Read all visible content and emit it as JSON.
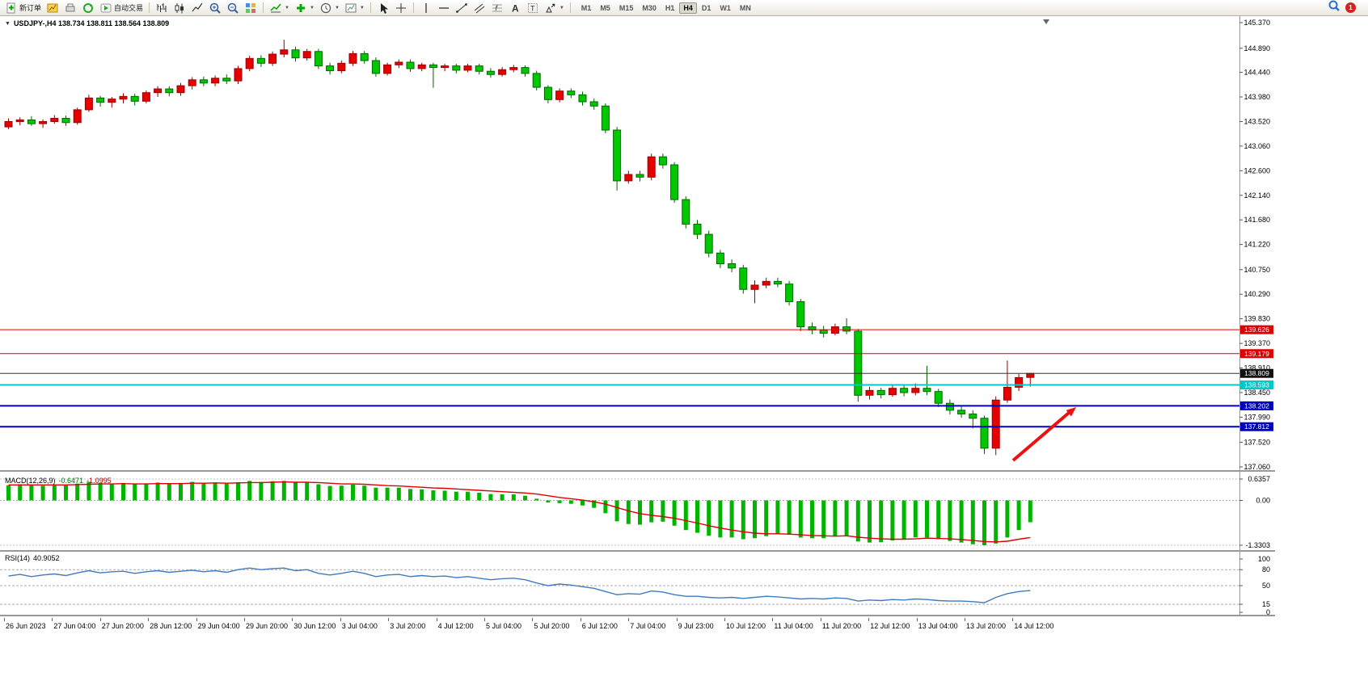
{
  "toolbar": {
    "items": [
      {
        "name": "new-order-button",
        "icon": "doc-plus",
        "label": "新订单"
      },
      {
        "name": "charts-window-button",
        "icon": "chart-yellow"
      },
      {
        "name": "print-button",
        "icon": "print"
      },
      {
        "name": "refresh-button",
        "icon": "refresh"
      },
      {
        "name": "autotrade-button",
        "icon": "autotrade-play",
        "label": "自动交易"
      },
      {
        "sep": true
      },
      {
        "name": "bar-chart-button",
        "icon": "bars"
      },
      {
        "name": "candlestick-chart-button",
        "icon": "candle"
      },
      {
        "name": "line-chart-button",
        "icon": "linechart"
      },
      {
        "name": "zoom-in-button",
        "icon": "zoom-in"
      },
      {
        "name": "zoom-out-button",
        "icon": "zoom-out"
      },
      {
        "name": "tile-windows-button",
        "icon": "tile"
      },
      {
        "sep": true
      },
      {
        "name": "indicators-button",
        "icon": "indicator",
        "caret": true
      },
      {
        "name": "add-indicator-button",
        "icon": "plus-green",
        "caret": true
      },
      {
        "name": "periods-button",
        "icon": "clock",
        "caret": true
      },
      {
        "name": "templates-button",
        "icon": "settings-chart",
        "caret": true
      },
      {
        "sep": true
      },
      {
        "name": "cursor-button",
        "icon": "cursor"
      },
      {
        "name": "crosshair-button",
        "icon": "crosshair"
      },
      {
        "sep": true
      },
      {
        "name": "vertical-line-button",
        "icon": "vline"
      },
      {
        "name": "horizontal-line-button",
        "icon": "hline"
      },
      {
        "name": "trendline-button",
        "icon": "trendline"
      },
      {
        "name": "channel-button",
        "icon": "channel"
      },
      {
        "name": "fibonacci-button",
        "icon": "fibo"
      },
      {
        "name": "text-button",
        "icon": "textA"
      },
      {
        "name": "label-button",
        "icon": "textT"
      },
      {
        "name": "arrows-button",
        "icon": "shapes",
        "caret": true
      },
      {
        "sep": true
      }
    ],
    "timeframes": [
      "M1",
      "M5",
      "M15",
      "M30",
      "H1",
      "H4",
      "D1",
      "W1",
      "MN"
    ],
    "active_timeframe": "H4",
    "notification_count": "1"
  },
  "chart": {
    "title": "USDJPY-,H4 138.734 138.811 138.564 138.809",
    "symbol": "USDJPY-",
    "period": "H4",
    "ohlc": {
      "open": "138.734",
      "high": "138.811",
      "low": "138.564",
      "close": "138.809"
    },
    "axis_max": 145.37,
    "axis_min": 137.06,
    "price_axis": [
      "145.370",
      "144.890",
      "144.440",
      "143.980",
      "143.520",
      "143.060",
      "142.600",
      "142.140",
      "141.680",
      "141.220",
      "140.750",
      "140.290",
      "139.830",
      "139.370",
      "138.910",
      "138.450",
      "137.990",
      "137.520",
      "137.060"
    ],
    "hlines": [
      {
        "price": 139.626,
        "label": "139.626",
        "color": "#dd0000",
        "badge": "#dd0000",
        "width": 1
      },
      {
        "price": 139.179,
        "label": "139.179",
        "color": "#dd0000",
        "badge": "#dd0000",
        "width": 1
      },
      {
        "price": 138.809,
        "label": "138.809",
        "color": "#333333",
        "badge": "#111111",
        "width": 1
      },
      {
        "price": 138.593,
        "label": "138.593",
        "color": "#00c8c8",
        "badge": "#00c8c8",
        "width": 2
      },
      {
        "price": 138.202,
        "label": "138.202",
        "color": "#0000c0",
        "badge": "#0000c0",
        "width": 2
      },
      {
        "price": 137.812,
        "label": "137.812",
        "color": "#0000c0",
        "badge": "#0000c0",
        "width": 2
      }
    ],
    "time_axis": [
      "26 Jun 2023",
      "27 Jun 04:00",
      "27 Jun 20:00",
      "28 Jun 12:00",
      "29 Jun 04:00",
      "29 Jun 20:00",
      "30 Jun 12:00",
      "3 Jul 04:00",
      "3 Jul 20:00",
      "4 Jul 12:00",
      "5 Jul 04:00",
      "5 Jul 20:00",
      "6 Jul 12:00",
      "7 Jul 04:00",
      "9 Jul 23:00",
      "10 Jul 12:00",
      "11 Jul 04:00",
      "11 Jul 20:00",
      "12 Jul 12:00",
      "13 Jul 04:00",
      "13 Jul 20:00",
      "14 Jul 12:00"
    ],
    "arrow": {
      "color": "#ee1111"
    }
  },
  "chart_data": {
    "type": "candlestick",
    "title": "USDJPY- H4",
    "ylim": [
      137.06,
      145.37
    ],
    "x_labels": [
      "26 Jun 2023",
      "27 Jun 04:00",
      "27 Jun 20:00",
      "28 Jun 12:00",
      "29 Jun 04:00",
      "29 Jun 20:00",
      "30 Jun 12:00",
      "3 Jul 04:00",
      "3 Jul 20:00",
      "4 Jul 12:00",
      "5 Jul 04:00",
      "5 Jul 20:00",
      "6 Jul 12:00",
      "7 Jul 04:00",
      "9 Jul 23:00",
      "10 Jul 12:00",
      "11 Jul 04:00",
      "11 Jul 20:00",
      "12 Jul 12:00",
      "13 Jul 04:00",
      "13 Jul 20:00",
      "14 Jul 12:00"
    ],
    "up_color": "#e60000",
    "down_color": "#00c800",
    "up_border": "#990000",
    "down_border": "#006600",
    "candles": [
      [
        143.42,
        143.58,
        143.38,
        143.52
      ],
      [
        143.52,
        143.6,
        143.45,
        143.55
      ],
      [
        143.55,
        143.62,
        143.44,
        143.48
      ],
      [
        143.48,
        143.56,
        143.4,
        143.52
      ],
      [
        143.52,
        143.64,
        143.48,
        143.58
      ],
      [
        143.58,
        143.63,
        143.44,
        143.5
      ],
      [
        143.5,
        143.78,
        143.46,
        143.74
      ],
      [
        143.74,
        144.02,
        143.7,
        143.96
      ],
      [
        143.96,
        144.0,
        143.8,
        143.88
      ],
      [
        143.88,
        143.98,
        143.78,
        143.94
      ],
      [
        143.94,
        144.05,
        143.86,
        143.99
      ],
      [
        143.99,
        144.04,
        143.82,
        143.9
      ],
      [
        143.9,
        144.1,
        143.86,
        144.06
      ],
      [
        144.06,
        144.18,
        143.98,
        144.13
      ],
      [
        144.13,
        144.18,
        143.99,
        144.06
      ],
      [
        144.06,
        144.24,
        144.0,
        144.19
      ],
      [
        144.19,
        144.35,
        144.12,
        144.3
      ],
      [
        144.3,
        144.36,
        144.18,
        144.24
      ],
      [
        144.24,
        144.38,
        144.18,
        144.33
      ],
      [
        144.33,
        144.4,
        144.22,
        144.28
      ],
      [
        144.28,
        144.56,
        144.22,
        144.51
      ],
      [
        144.51,
        144.75,
        144.46,
        144.7
      ],
      [
        144.7,
        144.76,
        144.54,
        144.61
      ],
      [
        144.61,
        144.83,
        144.56,
        144.78
      ],
      [
        144.78,
        145.05,
        144.72,
        144.86
      ],
      [
        144.86,
        144.92,
        144.64,
        144.71
      ],
      [
        144.71,
        144.88,
        144.66,
        144.83
      ],
      [
        144.83,
        144.88,
        144.5,
        144.56
      ],
      [
        144.56,
        144.62,
        144.4,
        144.47
      ],
      [
        144.47,
        144.66,
        144.42,
        144.61
      ],
      [
        144.61,
        144.84,
        144.56,
        144.79
      ],
      [
        144.79,
        144.84,
        144.6,
        144.66
      ],
      [
        144.66,
        144.72,
        144.36,
        144.42
      ],
      [
        144.42,
        144.62,
        144.38,
        144.58
      ],
      [
        144.58,
        144.68,
        144.52,
        144.63
      ],
      [
        144.63,
        144.68,
        144.45,
        144.51
      ],
      [
        144.51,
        144.62,
        144.46,
        144.58
      ],
      [
        144.58,
        144.62,
        144.15,
        144.53
      ],
      [
        144.53,
        144.6,
        144.46,
        144.56
      ],
      [
        144.56,
        144.6,
        144.42,
        144.48
      ],
      [
        144.48,
        144.6,
        144.44,
        144.56
      ],
      [
        144.56,
        144.6,
        144.4,
        144.46
      ],
      [
        144.46,
        144.52,
        144.34,
        144.4
      ],
      [
        144.4,
        144.54,
        144.36,
        144.49
      ],
      [
        144.49,
        144.58,
        144.44,
        144.53
      ],
      [
        144.53,
        144.57,
        144.36,
        144.42
      ],
      [
        144.42,
        144.47,
        144.1,
        144.16
      ],
      [
        144.16,
        144.2,
        143.86,
        143.93
      ],
      [
        143.93,
        144.14,
        143.88,
        144.09
      ],
      [
        144.09,
        144.14,
        143.96,
        144.02
      ],
      [
        144.02,
        144.08,
        143.82,
        143.89
      ],
      [
        143.89,
        143.95,
        143.74,
        143.81
      ],
      [
        143.81,
        143.86,
        143.3,
        143.36
      ],
      [
        143.36,
        143.42,
        142.23,
        142.41
      ],
      [
        142.41,
        142.6,
        142.36,
        142.53
      ],
      [
        142.53,
        142.6,
        142.4,
        142.48
      ],
      [
        142.48,
        142.92,
        142.42,
        142.86
      ],
      [
        142.86,
        142.92,
        142.64,
        142.71
      ],
      [
        142.71,
        142.76,
        142.0,
        142.06
      ],
      [
        142.06,
        142.12,
        141.52,
        141.6
      ],
      [
        141.6,
        141.68,
        141.32,
        141.41
      ],
      [
        141.41,
        141.48,
        140.98,
        141.06
      ],
      [
        141.06,
        141.12,
        140.78,
        140.86
      ],
      [
        140.86,
        140.94,
        140.7,
        140.78
      ],
      [
        140.78,
        140.84,
        140.3,
        140.38
      ],
      [
        140.38,
        140.55,
        140.12,
        140.46
      ],
      [
        140.46,
        140.6,
        140.4,
        140.53
      ],
      [
        140.53,
        140.6,
        140.42,
        140.48
      ],
      [
        140.48,
        140.54,
        140.08,
        140.15
      ],
      [
        140.15,
        140.2,
        139.6,
        139.68
      ],
      [
        139.68,
        139.76,
        139.54,
        139.62
      ],
      [
        139.62,
        139.7,
        139.48,
        139.56
      ],
      [
        139.56,
        139.74,
        139.52,
        139.68
      ],
      [
        139.68,
        139.84,
        139.54,
        139.6
      ],
      [
        139.6,
        139.64,
        138.28,
        138.4
      ],
      [
        138.4,
        138.56,
        138.32,
        138.49
      ],
      [
        138.49,
        138.54,
        138.34,
        138.41
      ],
      [
        138.41,
        138.6,
        138.37,
        138.53
      ],
      [
        138.53,
        138.58,
        138.38,
        138.45
      ],
      [
        138.45,
        138.62,
        138.4,
        138.53
      ],
      [
        138.53,
        138.95,
        138.4,
        138.47
      ],
      [
        138.47,
        138.52,
        138.18,
        138.25
      ],
      [
        138.25,
        138.32,
        138.04,
        138.12
      ],
      [
        138.12,
        138.2,
        137.98,
        138.05
      ],
      [
        138.05,
        138.12,
        137.78,
        137.97
      ],
      [
        137.97,
        138.02,
        137.3,
        137.41
      ],
      [
        137.41,
        138.38,
        137.28,
        138.31
      ],
      [
        138.31,
        139.05,
        138.26,
        138.55
      ],
      [
        138.55,
        138.8,
        138.48,
        138.73
      ],
      [
        138.734,
        138.811,
        138.564,
        138.809
      ]
    ],
    "macd": {
      "label": "MACD(12,26,9)",
      "value": "-0.6471",
      "signal_value": "-1.0995",
      "axis": [
        "0.6357",
        "0.00",
        "-1.3303"
      ],
      "ymax": 0.6357,
      "ymin": -1.3303,
      "hist_color": "#00b400",
      "signal_color": "#dd0000",
      "hist": [
        0.45,
        0.48,
        0.46,
        0.44,
        0.47,
        0.45,
        0.5,
        0.55,
        0.52,
        0.5,
        0.52,
        0.48,
        0.5,
        0.53,
        0.5,
        0.52,
        0.55,
        0.52,
        0.53,
        0.5,
        0.54,
        0.58,
        0.55,
        0.57,
        0.58,
        0.53,
        0.54,
        0.48,
        0.43,
        0.44,
        0.47,
        0.44,
        0.38,
        0.38,
        0.38,
        0.34,
        0.33,
        0.3,
        0.29,
        0.26,
        0.26,
        0.23,
        0.19,
        0.18,
        0.18,
        0.14,
        0.05,
        -0.06,
        -0.08,
        -0.1,
        -0.15,
        -0.22,
        -0.38,
        -0.62,
        -0.7,
        -0.72,
        -0.65,
        -0.63,
        -0.75,
        -0.88,
        -0.96,
        -1.05,
        -1.1,
        -1.1,
        -1.15,
        -1.12,
        -1.06,
        -1.0,
        -1.02,
        -1.1,
        -1.12,
        -1.12,
        -1.07,
        -1.04,
        -1.22,
        -1.25,
        -1.24,
        -1.19,
        -1.15,
        -1.1,
        -1.1,
        -1.15,
        -1.2,
        -1.25,
        -1.3,
        -1.33,
        -1.28,
        -1.1,
        -0.88,
        -0.6471
      ],
      "signal": [
        0.46,
        0.46,
        0.46,
        0.46,
        0.46,
        0.46,
        0.47,
        0.48,
        0.49,
        0.49,
        0.5,
        0.49,
        0.49,
        0.5,
        0.5,
        0.5,
        0.51,
        0.51,
        0.52,
        0.51,
        0.52,
        0.53,
        0.53,
        0.54,
        0.55,
        0.54,
        0.54,
        0.53,
        0.51,
        0.49,
        0.49,
        0.48,
        0.46,
        0.44,
        0.43,
        0.41,
        0.39,
        0.37,
        0.36,
        0.34,
        0.32,
        0.3,
        0.28,
        0.26,
        0.24,
        0.22,
        0.19,
        0.14,
        0.09,
        0.05,
        0.01,
        -0.04,
        -0.11,
        -0.21,
        -0.31,
        -0.39,
        -0.44,
        -0.48,
        -0.53,
        -0.6,
        -0.67,
        -0.75,
        -0.82,
        -0.88,
        -0.93,
        -0.97,
        -0.99,
        -0.99,
        -1.0,
        -1.02,
        -1.04,
        -1.05,
        -1.06,
        -1.05,
        -1.09,
        -1.12,
        -1.14,
        -1.15,
        -1.15,
        -1.14,
        -1.12,
        -1.13,
        -1.14,
        -1.16,
        -1.19,
        -1.22,
        -1.23,
        -1.21,
        -1.15,
        -1.0995
      ]
    },
    "rsi": {
      "label": "RSI(14)",
      "value": "40.9052",
      "axis": [
        "100",
        "80",
        "50",
        "15",
        "0"
      ],
      "levels": [
        80,
        50,
        15
      ],
      "ymax": 100,
      "ymin": 0,
      "color": "#3e7bc0",
      "values": [
        68,
        71,
        67,
        70,
        72,
        69,
        74,
        78,
        74,
        76,
        77,
        73,
        76,
        78,
        75,
        77,
        79,
        76,
        78,
        75,
        80,
        83,
        80,
        82,
        83,
        78,
        80,
        73,
        70,
        73,
        77,
        73,
        67,
        70,
        71,
        67,
        69,
        67,
        68,
        65,
        67,
        64,
        61,
        63,
        64,
        61,
        55,
        50,
        53,
        51,
        48,
        45,
        39,
        33,
        35,
        34,
        40,
        38,
        33,
        30,
        30,
        28,
        27,
        28,
        26,
        28,
        30,
        29,
        27,
        25,
        26,
        25,
        27,
        26,
        21,
        23,
        22,
        24,
        23,
        25,
        24,
        22,
        21,
        21,
        20,
        18,
        28,
        35,
        39,
        40.9
      ]
    }
  }
}
